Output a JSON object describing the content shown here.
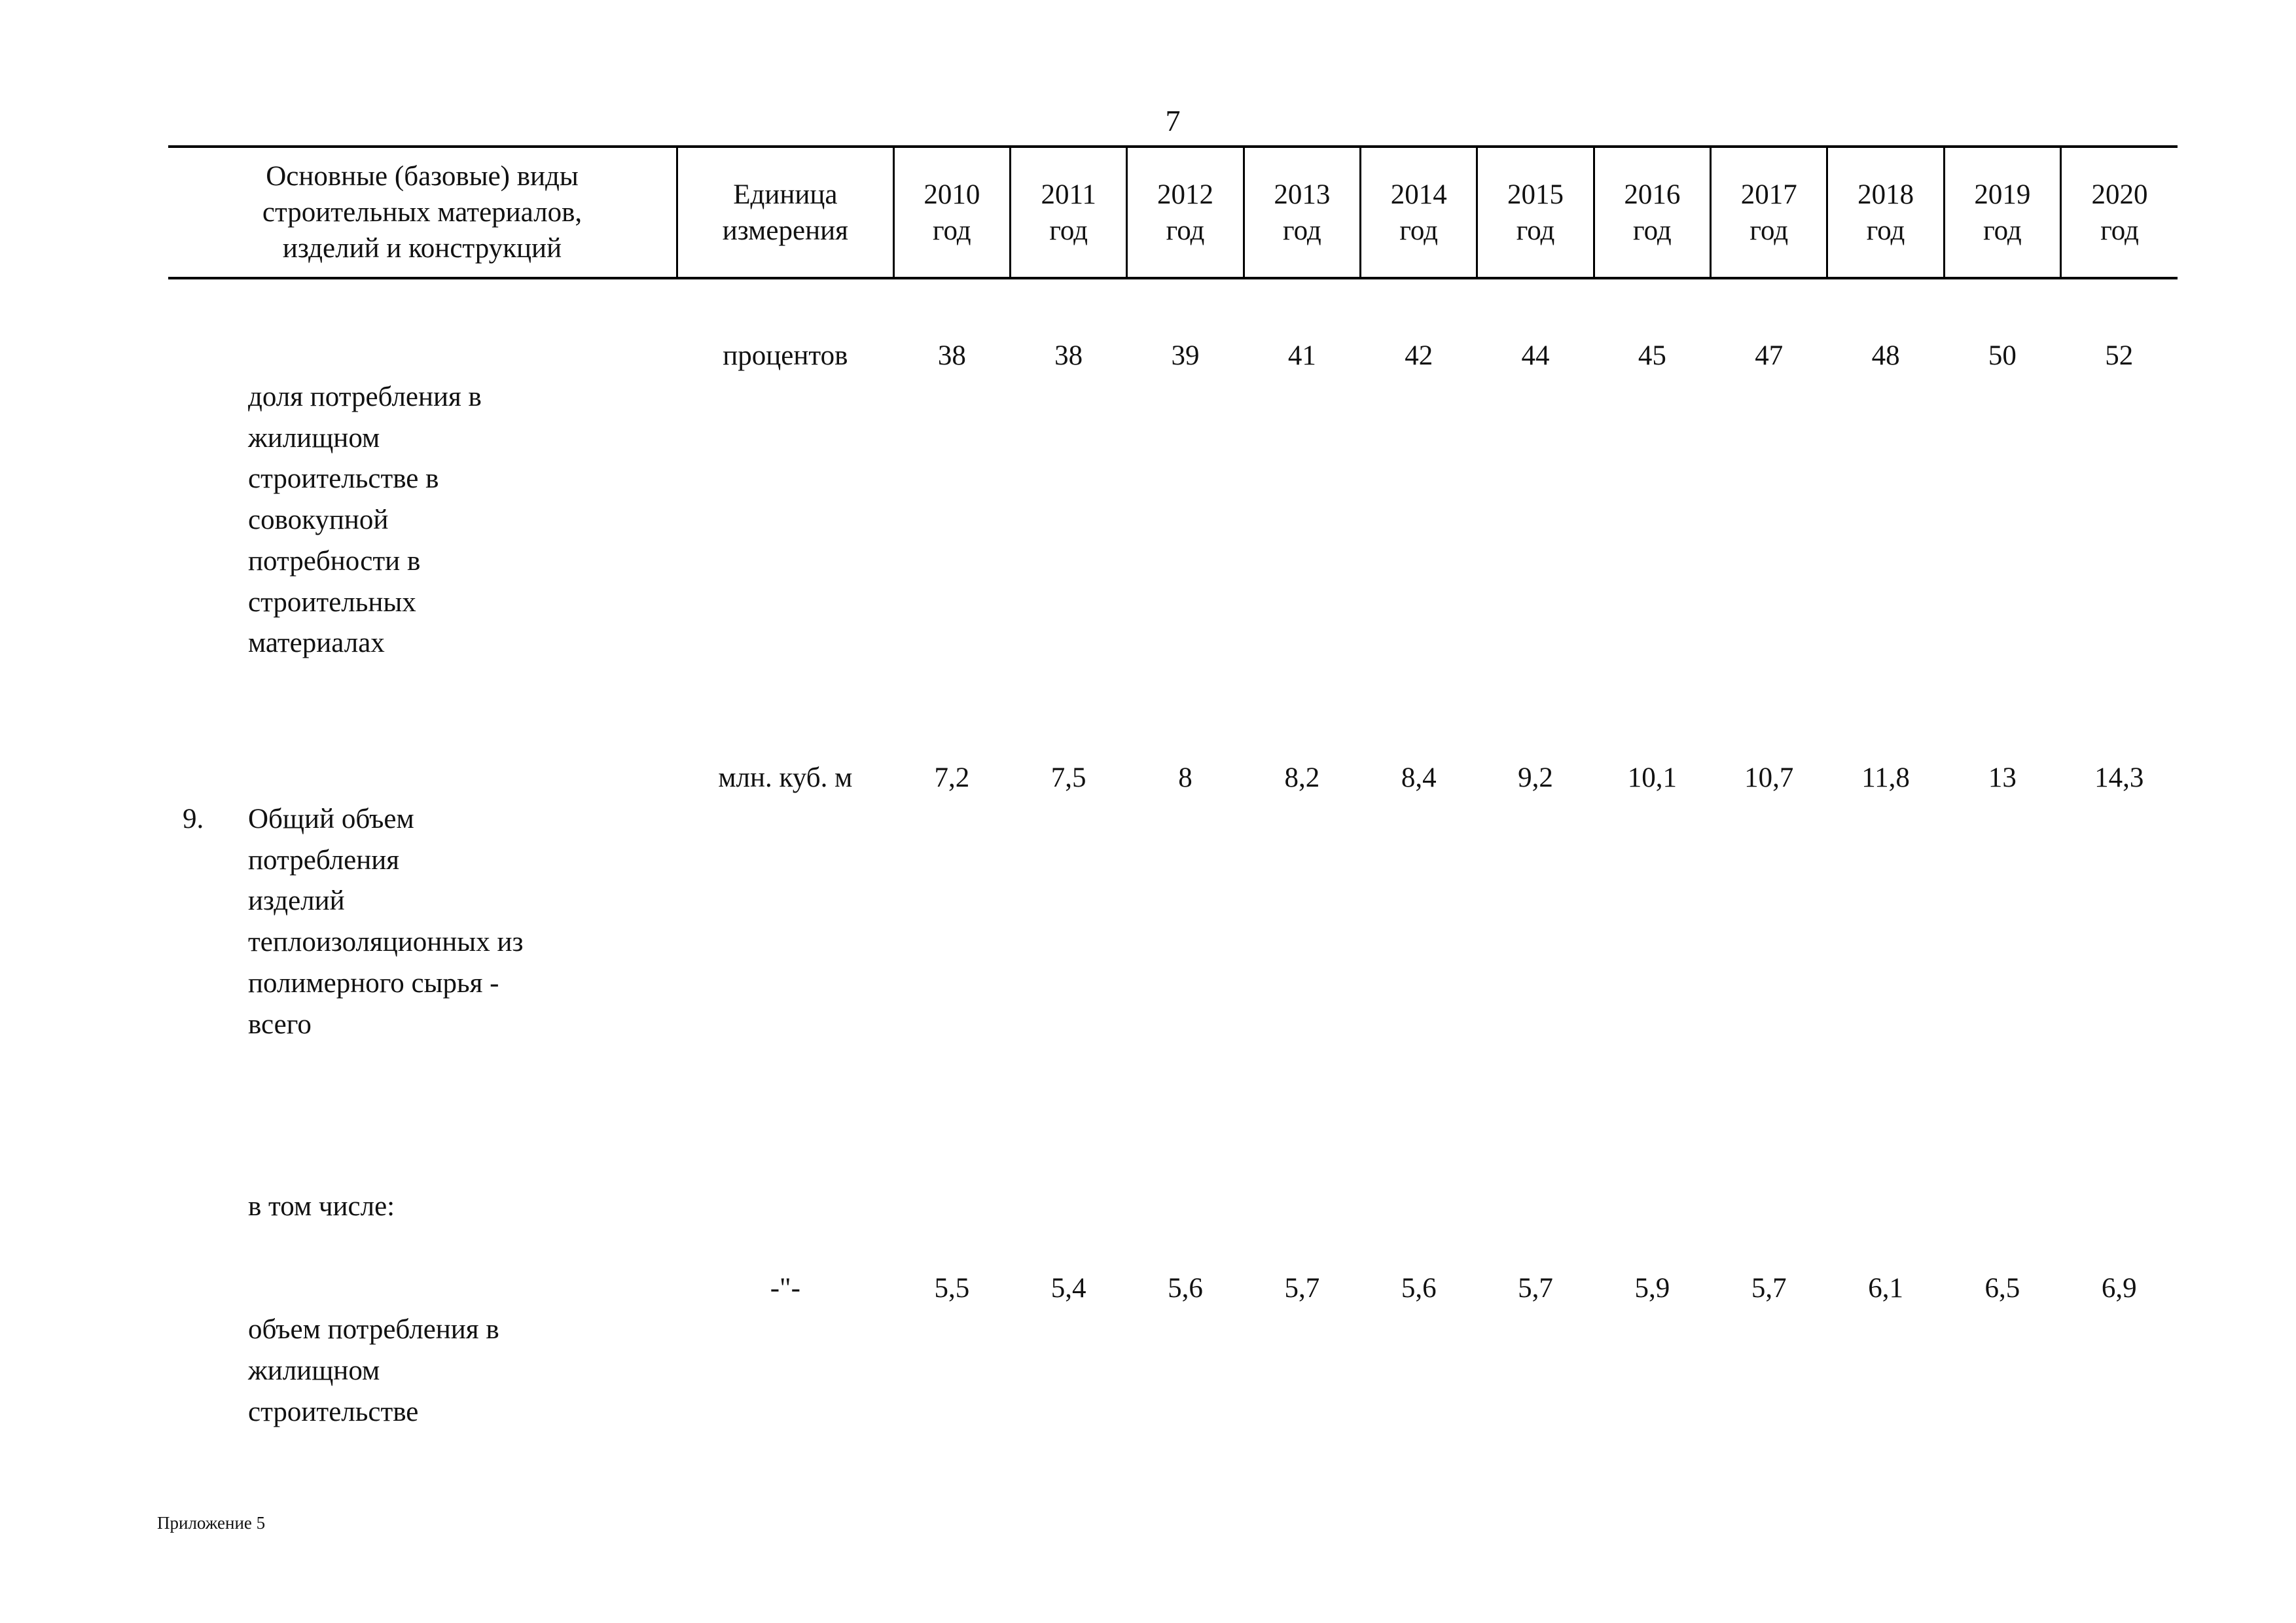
{
  "page": {
    "number": "7",
    "footer_note": "Приложение 5"
  },
  "table": {
    "header": {
      "main": "Основные (базовые) виды\nстроительных материалов,\nизделий и конструкций",
      "unit": "Единица\nизмерения",
      "years": [
        "2010\nгод",
        "2011\nгод",
        "2012\nгод",
        "2013\nгод",
        "2014\nгод",
        "2015\nгод",
        "2016\nгод",
        "2017\nгод",
        "2018\nгод",
        "2019\nгод",
        "2020\nгод"
      ]
    },
    "rows": [
      {
        "num": "",
        "label": "доля потребления в\nжилищном\nстроительстве в\nсовокупной\nпотребности в\nстроительных\nматериалах",
        "unit": "процентов",
        "values": [
          "38",
          "38",
          "39",
          "41",
          "42",
          "44",
          "45",
          "47",
          "48",
          "50",
          "52"
        ]
      },
      {
        "num": "9.",
        "label": "Общий объем\nпотребления\nизделий\nтеплоизоляционных из\nполимерного сырья -\nвсего",
        "unit": "млн. куб. м",
        "values": [
          "7,2",
          "7,5",
          "8",
          "8,2",
          "8,4",
          "9,2",
          "10,1",
          "10,7",
          "11,8",
          "13",
          "14,3"
        ]
      },
      {
        "num": "",
        "label": "в том числе:",
        "unit": "",
        "values": [
          "",
          "",
          "",
          "",
          "",
          "",
          "",
          "",
          "",
          "",
          ""
        ]
      },
      {
        "num": "",
        "label": "объем потребления в\nжилищном\nстроительстве",
        "unit": "-\"-",
        "values": [
          "5,5",
          "5,4",
          "5,6",
          "5,7",
          "5,6",
          "5,7",
          "5,9",
          "5,7",
          "6,1",
          "6,5",
          "6,9"
        ]
      }
    ]
  }
}
